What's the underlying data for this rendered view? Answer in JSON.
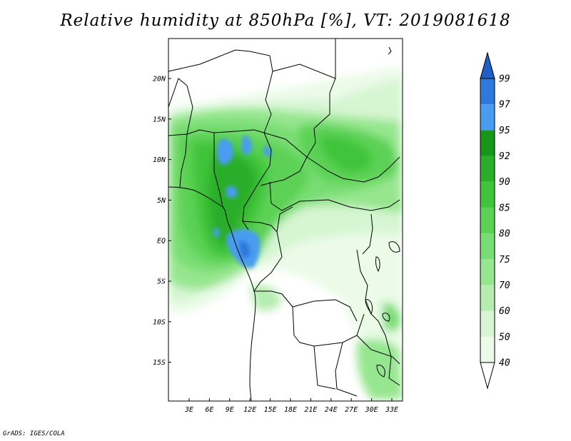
{
  "title": "Relative humidity at 850hPa [%], VT: 2019081618",
  "credit": "GrADS: IGES/COLA",
  "map": {
    "lat_labels": [
      "20N",
      "15N",
      "10N",
      "5N",
      "EQ",
      "5S",
      "10S",
      "15S"
    ],
    "lon_labels": [
      "3E",
      "6E",
      "9E",
      "12E",
      "15E",
      "18E",
      "21E",
      "24E",
      "27E",
      "30E",
      "33E"
    ]
  },
  "colorbar": {
    "levels": [
      "40",
      "50",
      "60",
      "70",
      "75",
      "80",
      "85",
      "90",
      "92",
      "95",
      "97",
      "99"
    ],
    "colors": [
      "#ebfbe8",
      "#d6f5d1",
      "#b5edb0",
      "#96e68f",
      "#78dd72",
      "#5bd155",
      "#3fc43b",
      "#2aae2a",
      "#16961b",
      "#4a9cf0",
      "#2f78dc",
      "#1e5fc8"
    ]
  }
}
